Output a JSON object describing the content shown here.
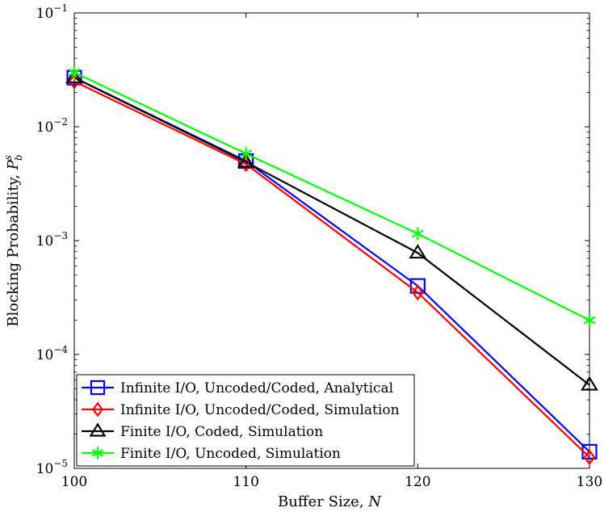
{
  "chart_data": {
    "type": "line",
    "x": [
      100,
      110,
      120,
      130
    ],
    "xlim": [
      100,
      130
    ],
    "xticks": [
      100,
      110,
      120,
      130
    ],
    "xlabel": "Buffer Size, ",
    "xlabel_var": "N",
    "ylabel": "Blocking Probability, ",
    "ylabel_var": "P",
    "ylabel_var_sup": "s",
    "ylabel_var_sub": "b",
    "yscale": "log",
    "ylim": [
      1e-05,
      0.1
    ],
    "yticks": [
      {
        "value": 1e-05,
        "base": "10",
        "exp": "−5"
      },
      {
        "value": 0.0001,
        "base": "10",
        "exp": "−4"
      },
      {
        "value": 0.001,
        "base": "10",
        "exp": "−3"
      },
      {
        "value": 0.01,
        "base": "10",
        "exp": "−2"
      },
      {
        "value": 0.1,
        "base": "10",
        "exp": "−1"
      }
    ],
    "grid": false,
    "legend_position": "bottom-left",
    "series": [
      {
        "name": "Infinite I/O, Uncoded/Coded, Analytical",
        "color": "#0000ff",
        "marker": "square",
        "values": [
          0.027,
          0.005,
          0.0004,
          1.4e-05
        ]
      },
      {
        "name": "Infinite I/O, Uncoded/Coded, Simulation",
        "color": "#ff0000",
        "marker": "diamond",
        "values": [
          0.025,
          0.0047,
          0.00035,
          1.25e-05
        ]
      },
      {
        "name": "Finite I/O, Coded, Simulation",
        "color": "#000000",
        "marker": "triangle",
        "values": [
          0.027,
          0.0049,
          0.00078,
          5.4e-05
        ]
      },
      {
        "name": "Finite I/O, Uncoded, Simulation",
        "color": "#00ff00",
        "marker": "star",
        "values": [
          0.03,
          0.0058,
          0.00115,
          0.0002
        ]
      }
    ]
  }
}
